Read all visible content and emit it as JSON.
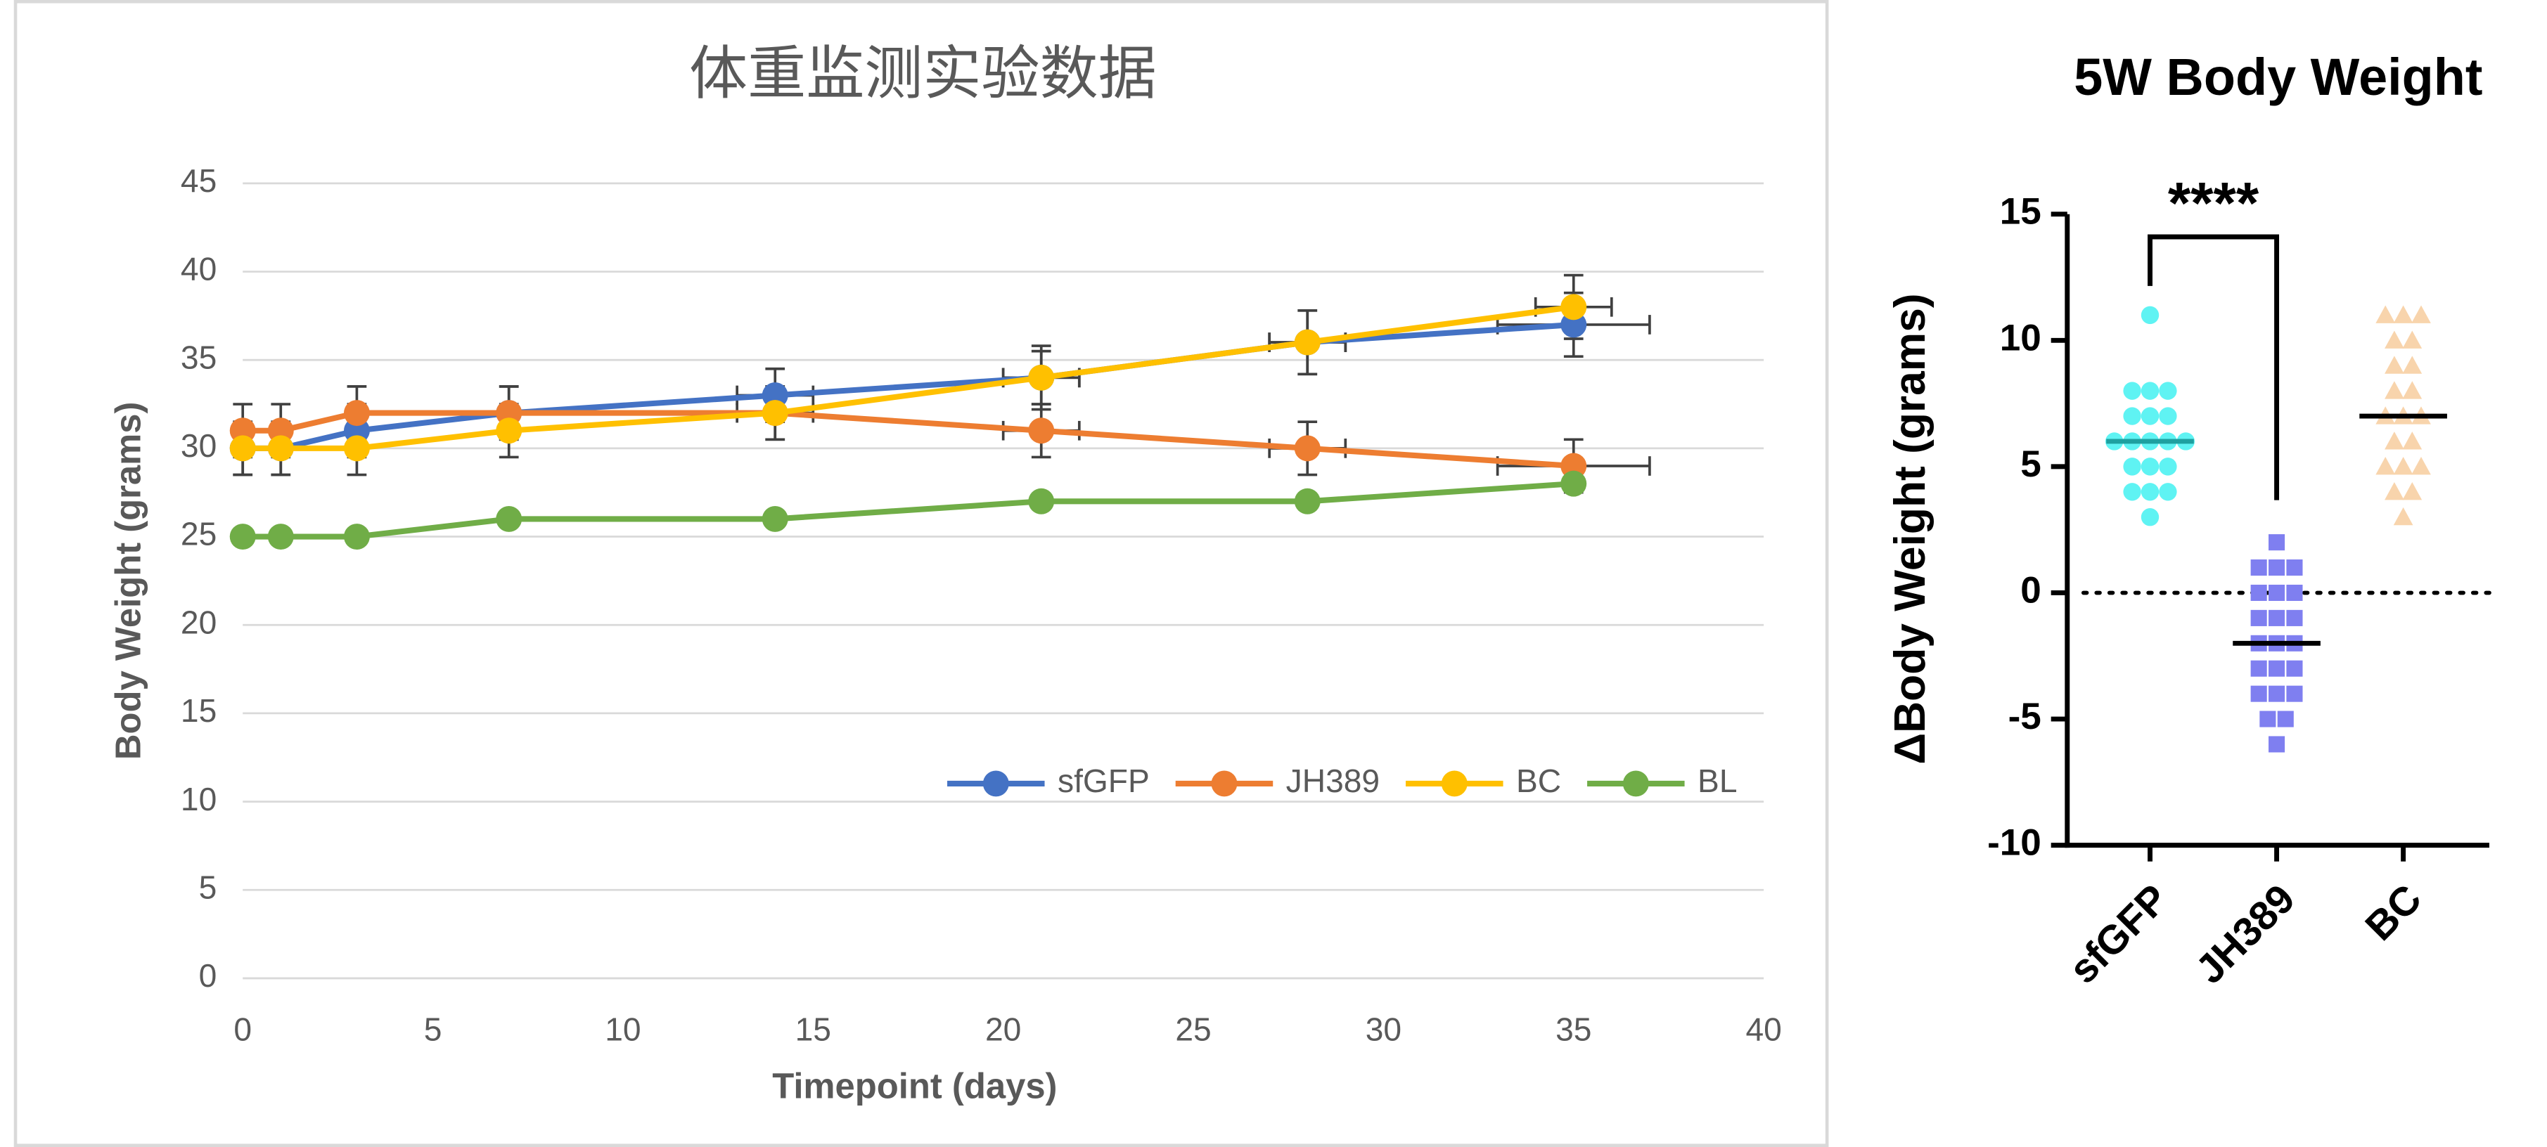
{
  "chart_data": [
    {
      "type": "line",
      "title": "体重监测实验数据",
      "xlabel": "Timepoint (days)",
      "ylabel": "Body Weight (grams)",
      "x": [
        0,
        1,
        3,
        7,
        14,
        21,
        28,
        35
      ],
      "series": [
        {
          "name": "sfGFP",
          "color": "#4472c4",
          "values": [
            30,
            30,
            31,
            32,
            33,
            34,
            36,
            37
          ],
          "yerr": [
            1.5,
            1.5,
            1.5,
            1.5,
            1.5,
            1.5,
            1.8,
            1.8
          ],
          "xerr": [
            0,
            0,
            0,
            0,
            1,
            1,
            1,
            2
          ]
        },
        {
          "name": "JH389",
          "color": "#ed7d31",
          "values": [
            31,
            31,
            32,
            32,
            32,
            31,
            30,
            29
          ],
          "yerr": [
            1.5,
            1.5,
            1.5,
            1.5,
            1.5,
            1.5,
            1.5,
            1.5
          ],
          "xerr": [
            0,
            0,
            0,
            0,
            0,
            1,
            1,
            2
          ]
        },
        {
          "name": "BC",
          "color": "#ffc000",
          "values": [
            30,
            30,
            30,
            31,
            32,
            34,
            36,
            38
          ],
          "yerr": [
            1.5,
            1.5,
            1.5,
            1.5,
            1.5,
            1.8,
            1.8,
            1.8
          ],
          "xerr": [
            0,
            0,
            0,
            0,
            1,
            1,
            1,
            1
          ]
        },
        {
          "name": "BL",
          "color": "#70ad47",
          "values": [
            25,
            25,
            25,
            26,
            26,
            27,
            27,
            28
          ]
        }
      ],
      "xlim": [
        0,
        40
      ],
      "xticks": [
        0,
        5,
        10,
        15,
        20,
        25,
        30,
        35,
        40
      ],
      "ylim": [
        0,
        45
      ],
      "yticks": [
        0,
        5,
        10,
        15,
        20,
        25,
        30,
        35,
        40,
        45
      ],
      "grid": true,
      "legend": "lower right"
    },
    {
      "type": "dotplot",
      "title": "5W Body Weight",
      "ylabel": "ΔBody Weight (grams)",
      "categories": [
        "sfGFP",
        "JH389",
        "BC"
      ],
      "groups": [
        {
          "color": "#5ff3f3",
          "marker": "circle",
          "center_color": "#1fa0a0",
          "center": 6,
          "values": [
            11,
            8,
            8,
            8,
            7,
            7,
            7,
            6,
            6,
            6,
            6,
            6,
            5,
            5,
            5,
            4,
            4,
            4,
            3
          ]
        },
        {
          "color": "#7f7ff0",
          "marker": "square",
          "center_color": "#000000",
          "center": -2,
          "values": [
            2,
            1,
            1,
            1,
            0,
            0,
            0,
            -1,
            -1,
            -1,
            -2,
            -2,
            -2,
            -3,
            -3,
            -3,
            -4,
            -4,
            -4,
            -5,
            -5,
            -6
          ]
        },
        {
          "color": "#f8d4ac",
          "marker": "triangle",
          "center_color": "#000000",
          "center": 7,
          "values": [
            11,
            11,
            11,
            10,
            10,
            9,
            9,
            8,
            8,
            7,
            7,
            7,
            6,
            6,
            5,
            5,
            5,
            4,
            4,
            3
          ]
        }
      ],
      "reference_line": 0,
      "comparison": {
        "label": "****",
        "groups": [
          0,
          1
        ]
      },
      "ylim": [
        -10,
        15
      ],
      "yticks": [
        -10,
        -5,
        0,
        5,
        10,
        15
      ]
    }
  ]
}
